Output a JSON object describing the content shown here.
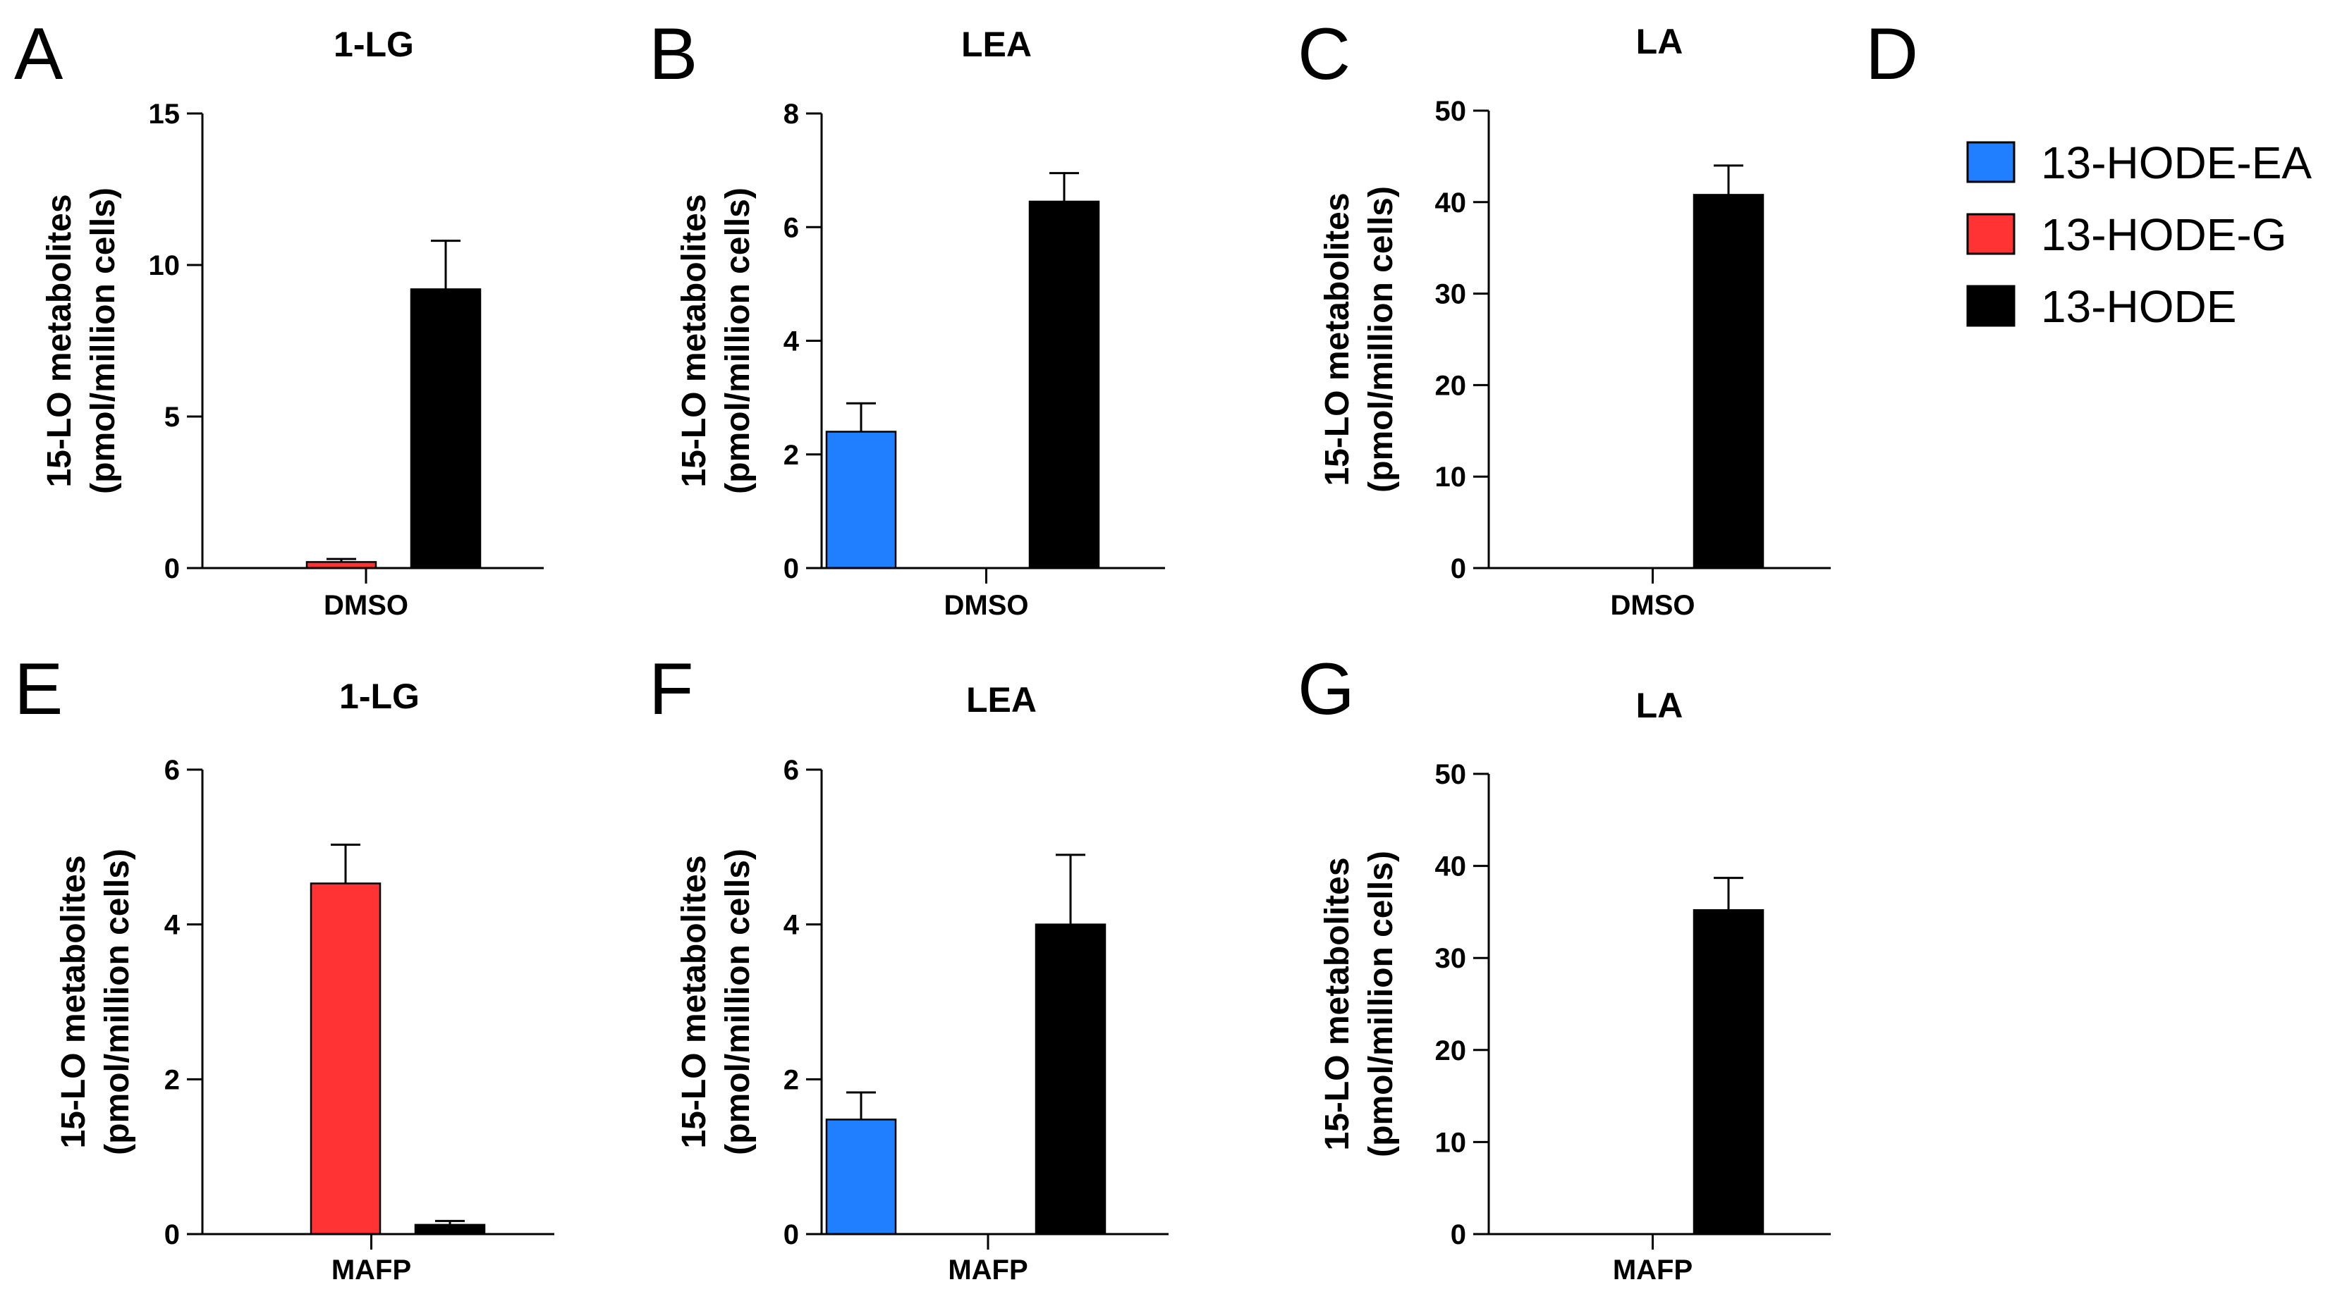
{
  "colors": {
    "13-HODE-EA": "#1f7fff",
    "13-HODE-G": "#ff3333",
    "13-HODE": "#000000"
  },
  "legend": {
    "letter": "D",
    "items": [
      {
        "label": "13-HODE-EA",
        "color": "#1f7fff"
      },
      {
        "label": "13-HODE-G",
        "color": "#ff3333"
      },
      {
        "label": "13-HODE",
        "color": "#000000"
      }
    ]
  },
  "chart_data": [
    {
      "letter": "A",
      "type": "bar",
      "title": "1-LG",
      "category": "DMSO",
      "ylabel": [
        "15-LO metabolites",
        "(pmol/million cells)"
      ],
      "ylim": [
        0,
        15
      ],
      "yticks": [
        0,
        5,
        10,
        15
      ],
      "series": [
        {
          "name": "13-HODE-EA",
          "value": 0,
          "error": 0
        },
        {
          "name": "13-HODE-G",
          "value": 0.2,
          "error": 0.1
        },
        {
          "name": "13-HODE",
          "value": 9.2,
          "error": 1.6
        }
      ]
    },
    {
      "letter": "B",
      "type": "bar",
      "title": "LEA",
      "category": "DMSO",
      "ylabel": [
        "15-LO metabolites",
        "(pmol/million cells)"
      ],
      "ylim": [
        0,
        8
      ],
      "yticks": [
        0,
        2,
        4,
        6,
        8
      ],
      "series": [
        {
          "name": "13-HODE-EA",
          "value": 2.4,
          "error": 0.5
        },
        {
          "name": "13-HODE-G",
          "value": 0,
          "error": 0
        },
        {
          "name": "13-HODE",
          "value": 6.45,
          "error": 0.5
        }
      ]
    },
    {
      "letter": "C",
      "type": "bar",
      "title": "LA",
      "category": "DMSO",
      "ylabel": [
        "15-LO metabolites",
        "(pmol/million cells)"
      ],
      "ylim": [
        0,
        50
      ],
      "yticks": [
        0,
        10,
        20,
        30,
        40,
        50
      ],
      "series": [
        {
          "name": "13-HODE-EA",
          "value": 0,
          "error": 0
        },
        {
          "name": "13-HODE-G",
          "value": 0,
          "error": 0
        },
        {
          "name": "13-HODE",
          "value": 40.8,
          "error": 3.2
        }
      ]
    },
    {
      "letter": "E",
      "type": "bar",
      "title": "1-LG",
      "category": "MAFP",
      "ylabel": [
        "15-LO metabolites",
        "(pmol/million cells)"
      ],
      "ylim": [
        0,
        6
      ],
      "yticks": [
        0,
        2,
        4,
        6
      ],
      "series": [
        {
          "name": "13-HODE-EA",
          "value": 0,
          "error": 0
        },
        {
          "name": "13-HODE-G",
          "value": 4.53,
          "error": 0.5
        },
        {
          "name": "13-HODE",
          "value": 0.12,
          "error": 0.05
        }
      ]
    },
    {
      "letter": "F",
      "type": "bar",
      "title": "LEA",
      "category": "MAFP",
      "ylabel": [
        "15-LO metabolites",
        "(pmol/million cells)"
      ],
      "ylim": [
        0,
        6
      ],
      "yticks": [
        0,
        2,
        4,
        6
      ],
      "series": [
        {
          "name": "13-HODE-EA",
          "value": 1.48,
          "error": 0.35
        },
        {
          "name": "13-HODE-G",
          "value": 0,
          "error": 0
        },
        {
          "name": "13-HODE",
          "value": 4.0,
          "error": 0.9
        }
      ]
    },
    {
      "letter": "G",
      "type": "bar",
      "title": "LA",
      "category": "MAFP",
      "ylabel": [
        "15-LO metabolites",
        "(pmol/million cells)"
      ],
      "ylim": [
        0,
        50
      ],
      "yticks": [
        0,
        10,
        20,
        30,
        40,
        50
      ],
      "series": [
        {
          "name": "13-HODE-EA",
          "value": 0,
          "error": 0
        },
        {
          "name": "13-HODE-G",
          "value": 0,
          "error": 0
        },
        {
          "name": "13-HODE",
          "value": 35.2,
          "error": 3.5
        }
      ]
    }
  ]
}
